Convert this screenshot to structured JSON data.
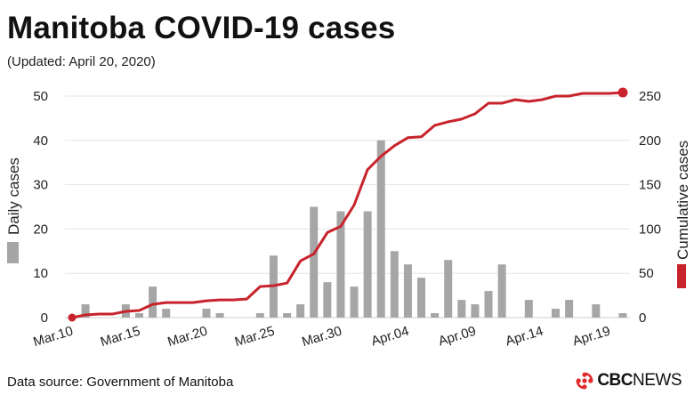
{
  "header": {
    "title": "Manitoba COVID-19 cases",
    "subtitle": "(Updated: April 20, 2020)"
  },
  "footer": {
    "source": "Data source: Government of Manitoba",
    "logo_text_bold": "CBC",
    "logo_text": "NEWS"
  },
  "colors": {
    "bar": "#a6a6a6",
    "line": "#c8232c",
    "grid": "#e6e6e6",
    "logo": "#e12a2a"
  },
  "chart_data": {
    "type": "bar",
    "title": "Manitoba COVID-19 cases",
    "subtitle": "(Updated: April 20, 2020)",
    "x_tick_labels": [
      "Mar.10",
      "Mar.15",
      "Mar.20",
      "Mar.25",
      "Mar.30",
      "Apr.04",
      "Apr.09",
      "Apr.14",
      "Apr.19"
    ],
    "categories": [
      "Mar.10",
      "Mar.11",
      "Mar.12",
      "Mar.13",
      "Mar.14",
      "Mar.15",
      "Mar.16",
      "Mar.17",
      "Mar.18",
      "Mar.19",
      "Mar.20",
      "Mar.21",
      "Mar.22",
      "Mar.23",
      "Mar.24",
      "Mar.25",
      "Mar.26",
      "Mar.27",
      "Mar.28",
      "Mar.29",
      "Mar.30",
      "Mar.31",
      "Apr.01",
      "Apr.02",
      "Apr.03",
      "Apr.04",
      "Apr.05",
      "Apr.06",
      "Apr.07",
      "Apr.08",
      "Apr.09",
      "Apr.10",
      "Apr.11",
      "Apr.12",
      "Apr.13",
      "Apr.14",
      "Apr.15",
      "Apr.16",
      "Apr.17",
      "Apr.18",
      "Apr.19",
      "Apr.20"
    ],
    "series": [
      {
        "name": "Daily cases",
        "type": "bar",
        "axis": "left",
        "values": [
          0,
          3,
          0,
          0,
          3,
          1,
          7,
          2,
          0,
          0,
          2,
          1,
          0,
          0,
          1,
          14,
          1,
          3,
          25,
          8,
          24,
          7,
          24,
          40,
          15,
          12,
          9,
          1,
          13,
          4,
          3,
          6,
          12,
          0,
          4,
          0,
          2,
          4,
          0,
          3,
          0,
          1
        ]
      },
      {
        "name": "Cumulative cases",
        "type": "line",
        "axis": "right",
        "values": [
          0,
          3,
          4,
          4,
          7,
          8,
          15,
          17,
          17,
          17,
          19,
          20,
          20,
          21,
          35,
          36,
          39,
          64,
          72,
          96,
          103,
          127,
          167,
          182,
          194,
          203,
          204,
          217,
          221,
          224,
          230,
          242,
          242,
          246,
          244,
          246,
          250,
          250,
          253,
          253,
          253,
          254
        ]
      }
    ],
    "ylabel_left": "Daily cases",
    "ylabel_right": "Cumulative cases",
    "ylim_left": [
      0,
      50
    ],
    "yticks_left": [
      0,
      10,
      20,
      30,
      40,
      50
    ],
    "ylim_right": [
      0,
      260
    ],
    "yticks_right": [
      0,
      50,
      100,
      150,
      200,
      250
    ],
    "grid": "horizontal",
    "legend": "axis-titles"
  }
}
